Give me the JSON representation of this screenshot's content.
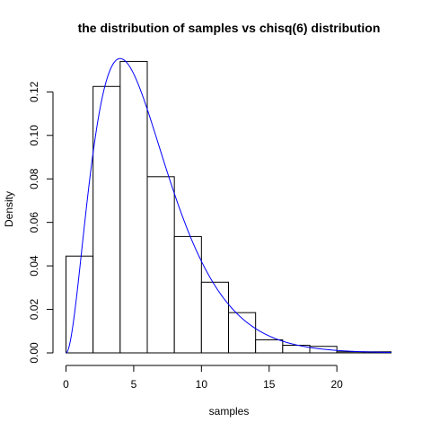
{
  "chart_data": {
    "type": "bar",
    "title": "the distribution of samples vs chisq(6) distribution",
    "xlabel": "samples",
    "ylabel": "Density",
    "xlim": [
      0,
      24
    ],
    "ylim": [
      0,
      0.135
    ],
    "x_ticks": [
      0,
      5,
      10,
      15,
      20
    ],
    "y_ticks": [
      "0.00",
      "0.02",
      "0.04",
      "0.06",
      "0.08",
      "0.10",
      "0.12"
    ],
    "bins": [
      {
        "start": 0,
        "end": 2,
        "density": 0.0445
      },
      {
        "start": 2,
        "end": 4,
        "density": 0.1225
      },
      {
        "start": 4,
        "end": 6,
        "density": 0.134
      },
      {
        "start": 6,
        "end": 8,
        "density": 0.081
      },
      {
        "start": 8,
        "end": 10,
        "density": 0.0535
      },
      {
        "start": 10,
        "end": 12,
        "density": 0.0325
      },
      {
        "start": 12,
        "end": 14,
        "density": 0.0185
      },
      {
        "start": 14,
        "end": 16,
        "density": 0.006
      },
      {
        "start": 16,
        "end": 18,
        "density": 0.0035
      },
      {
        "start": 18,
        "end": 20,
        "density": 0.003
      },
      {
        "start": 20,
        "end": 22,
        "density": 0.0005
      },
      {
        "start": 22,
        "end": 24,
        "density": 0.0005
      }
    ],
    "curve": {
      "distribution": "chisq",
      "df": 6,
      "color": "#0000ff"
    },
    "bar_fill": "#ffffff",
    "bar_stroke": "#000000",
    "grid": false,
    "legend": "none"
  }
}
